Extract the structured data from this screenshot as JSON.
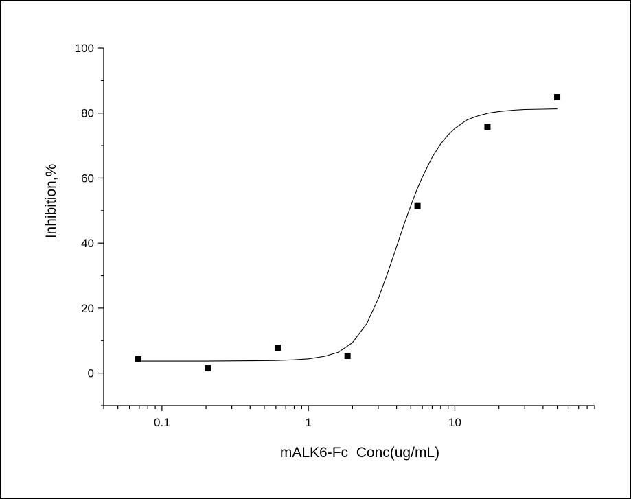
{
  "chart_data": {
    "type": "scatter",
    "title": "",
    "xlabel": "mALK6-Fc  Conc(ug/mL)",
    "ylabel": "Inhibition,%",
    "x_scale": "log",
    "xlim": [
      0.04,
      90
    ],
    "ylim": [
      -10,
      100
    ],
    "x_tick_labels": [
      {
        "value": 0.1,
        "label": "0.1"
      },
      {
        "value": 1,
        "label": "1"
      },
      {
        "value": 10,
        "label": "10"
      }
    ],
    "y_tick_labels": [
      {
        "value": 0,
        "label": "0"
      },
      {
        "value": 20,
        "label": "20"
      },
      {
        "value": 40,
        "label": "40"
      },
      {
        "value": 60,
        "label": "60"
      },
      {
        "value": 80,
        "label": "80"
      },
      {
        "value": 100,
        "label": "100"
      }
    ],
    "grid": false,
    "legend": "none",
    "series": [
      {
        "kind": "points",
        "marker": "square",
        "color": "#000000",
        "x": [
          0.069,
          0.206,
          0.617,
          1.85,
          5.56,
          16.7,
          50
        ],
        "y": [
          4.3,
          1.5,
          7.8,
          5.3,
          51.4,
          75.8,
          84.9
        ]
      },
      {
        "kind": "fit-curve",
        "color": "#000000",
        "x": [
          0.069,
          0.1,
          0.2,
          0.4,
          0.6,
          0.8,
          1,
          1.3,
          1.6,
          2,
          2.5,
          3,
          3.5,
          4,
          4.5,
          5,
          5.5,
          6,
          7,
          8,
          9,
          10,
          12,
          14,
          17,
          20,
          25,
          30,
          40,
          50
        ],
        "y": [
          3.7,
          3.7,
          3.7,
          3.8,
          3.9,
          4.1,
          4.4,
          5.2,
          6.4,
          9.4,
          15.2,
          22.9,
          31.2,
          38.9,
          45.8,
          51.5,
          56.4,
          60.3,
          66.4,
          70.5,
          73.3,
          75.3,
          77.8,
          79.0,
          80.0,
          80.5,
          80.9,
          81.1,
          81.2,
          81.3
        ]
      }
    ]
  }
}
